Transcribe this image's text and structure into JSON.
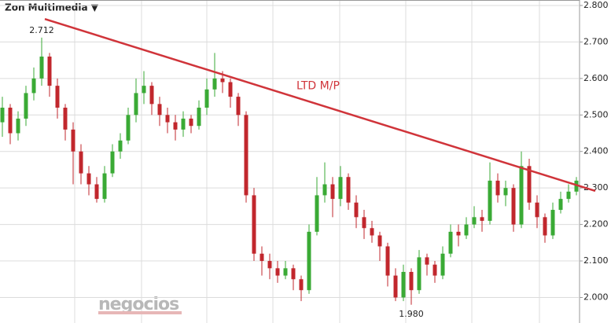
{
  "chart_data": {
    "type": "candlestick",
    "title": "Zon Multimedia ▼",
    "watermark": "negocios",
    "open": [
      2.48,
      2.52,
      2.45,
      2.49,
      2.56,
      2.6,
      2.66,
      2.58,
      2.52,
      2.46,
      2.4,
      2.34,
      2.31,
      2.27,
      2.34,
      2.4,
      2.43,
      2.5,
      2.56,
      2.58,
      2.53,
      2.5,
      2.48,
      2.46,
      2.49,
      2.47,
      2.52,
      2.57,
      2.6,
      2.59,
      2.55,
      2.5,
      2.28,
      2.12,
      2.1,
      2.08,
      2.06,
      2.08,
      2.05,
      2.02,
      2.18,
      2.28,
      2.31,
      2.27,
      2.33,
      2.26,
      2.22,
      2.19,
      2.17,
      2.14,
      2.06,
      2.0,
      2.07,
      2.02,
      2.11,
      2.09,
      2.06,
      2.12,
      2.18,
      2.17,
      2.2,
      2.22,
      2.21,
      2.32,
      2.28,
      2.3,
      2.2,
      2.36,
      2.26,
      2.22,
      2.17,
      2.24,
      2.27,
      2.29
    ],
    "high": [
      2.55,
      2.53,
      2.51,
      2.58,
      2.63,
      2.712,
      2.67,
      2.6,
      2.53,
      2.48,
      2.42,
      2.36,
      2.33,
      2.36,
      2.42,
      2.45,
      2.52,
      2.6,
      2.62,
      2.59,
      2.55,
      2.52,
      2.5,
      2.51,
      2.5,
      2.54,
      2.6,
      2.67,
      2.62,
      2.6,
      2.56,
      2.51,
      2.3,
      2.14,
      2.12,
      2.1,
      2.1,
      2.09,
      2.06,
      2.2,
      2.33,
      2.37,
      2.33,
      2.36,
      2.34,
      2.28,
      2.24,
      2.21,
      2.18,
      2.15,
      2.08,
      2.09,
      2.08,
      2.13,
      2.12,
      2.1,
      2.14,
      2.2,
      2.2,
      2.22,
      2.25,
      2.24,
      2.37,
      2.34,
      2.32,
      2.31,
      2.4,
      2.38,
      2.28,
      2.23,
      2.26,
      2.29,
      2.31,
      2.33
    ],
    "low": [
      2.44,
      2.42,
      2.43,
      2.47,
      2.54,
      2.58,
      2.55,
      2.49,
      2.43,
      2.31,
      2.31,
      2.28,
      2.26,
      2.26,
      2.33,
      2.38,
      2.42,
      2.48,
      2.53,
      2.5,
      2.47,
      2.45,
      2.43,
      2.44,
      2.45,
      2.46,
      2.5,
      2.55,
      2.56,
      2.52,
      2.47,
      2.26,
      2.1,
      2.06,
      2.05,
      2.04,
      2.05,
      2.02,
      1.99,
      2.01,
      2.17,
      2.26,
      2.22,
      2.25,
      2.24,
      2.19,
      2.16,
      2.15,
      2.1,
      2.03,
      1.99,
      1.99,
      1.98,
      2.01,
      2.06,
      2.04,
      2.05,
      2.11,
      2.14,
      2.16,
      2.19,
      2.18,
      2.2,
      2.26,
      2.25,
      2.18,
      2.19,
      2.24,
      2.19,
      2.15,
      2.16,
      2.23,
      2.26,
      2.28
    ],
    "close": [
      2.52,
      2.45,
      2.49,
      2.56,
      2.6,
      2.66,
      2.58,
      2.52,
      2.46,
      2.4,
      2.34,
      2.31,
      2.27,
      2.34,
      2.4,
      2.43,
      2.5,
      2.56,
      2.58,
      2.53,
      2.5,
      2.48,
      2.46,
      2.49,
      2.47,
      2.52,
      2.57,
      2.6,
      2.59,
      2.55,
      2.5,
      2.28,
      2.12,
      2.1,
      2.08,
      2.06,
      2.08,
      2.05,
      2.02,
      2.18,
      2.28,
      2.31,
      2.27,
      2.33,
      2.26,
      2.22,
      2.19,
      2.17,
      2.14,
      2.06,
      2.0,
      2.07,
      2.02,
      2.11,
      2.09,
      2.06,
      2.12,
      2.18,
      2.17,
      2.2,
      2.22,
      2.21,
      2.32,
      2.28,
      2.3,
      2.2,
      2.36,
      2.26,
      2.22,
      2.17,
      2.24,
      2.27,
      2.29,
      2.32
    ],
    "up_color": "#3aaa35",
    "down_color": "#c1272d",
    "ylim": [
      1.93,
      2.815
    ],
    "yticks": [
      {
        "value": 2.0,
        "label": "2.000"
      },
      {
        "value": 2.1,
        "label": "2.100"
      },
      {
        "value": 2.2,
        "label": "2.200"
      },
      {
        "value": 2.3,
        "label": "2.300"
      },
      {
        "value": 2.4,
        "label": "2.400"
      },
      {
        "value": 2.5,
        "label": "2.500"
      },
      {
        "value": 2.6,
        "label": "2.600"
      },
      {
        "value": 2.7,
        "label": "2.700"
      },
      {
        "value": 2.8,
        "label": "2.800"
      }
    ],
    "grid": true,
    "trendline": {
      "label": "LTD M/P",
      "color": "#d0343a",
      "start": [
        5.4,
        2.763
      ],
      "end": [
        75.4,
        2.292
      ]
    },
    "annotations": [
      {
        "text": "2.712",
        "index": 5,
        "value": 2.712
      },
      {
        "text": "1.980",
        "index": 52,
        "value": 1.98
      }
    ]
  }
}
